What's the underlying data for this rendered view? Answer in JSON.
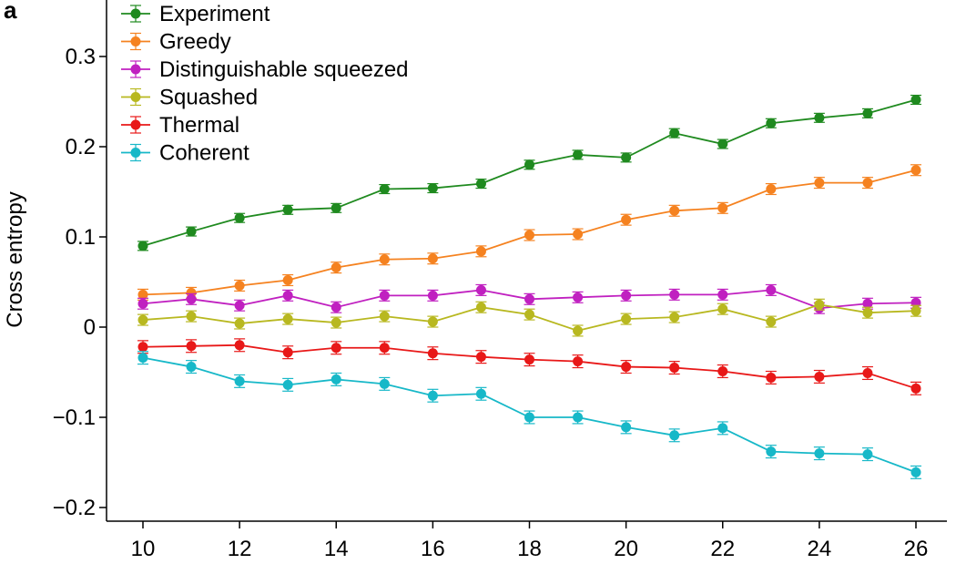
{
  "panel_label": "a",
  "chart_data": {
    "type": "line",
    "title": "",
    "xlabel": "",
    "ylabel": "Cross entropy",
    "xlim": [
      9.3,
      26.8
    ],
    "ylim": [
      -0.21,
      0.36
    ],
    "x_ticks": [
      10,
      12,
      14,
      16,
      18,
      20,
      22,
      24,
      26
    ],
    "x_tick_labels": [
      "10",
      "12",
      "14",
      "16",
      "18",
      "20",
      "22",
      "24",
      "26"
    ],
    "y_ticks": [
      -0.2,
      -0.1,
      0,
      0.1,
      0.2,
      0.3
    ],
    "y_tick_labels": [
      "−0.2",
      "−0.1",
      "0",
      "0.1",
      "0.2",
      "0.3"
    ],
    "grid": false,
    "legend_position": "top-left",
    "x": [
      10,
      11,
      12,
      13,
      14,
      15,
      16,
      17,
      18,
      19,
      20,
      21,
      22,
      23,
      24,
      25,
      26
    ],
    "series": [
      {
        "name": "Experiment",
        "color": "#1f8a1f",
        "values": [
          0.09,
          0.106,
          0.121,
          0.13,
          0.132,
          0.153,
          0.154,
          0.159,
          0.18,
          0.191,
          0.188,
          0.215,
          0.203,
          0.226,
          0.232,
          0.237,
          0.252
        ],
        "error": 0.005
      },
      {
        "name": "Greedy",
        "color": "#f58220",
        "values": [
          0.036,
          0.038,
          0.046,
          0.052,
          0.066,
          0.075,
          0.076,
          0.084,
          0.102,
          0.103,
          0.119,
          0.129,
          0.132,
          0.153,
          0.16,
          0.16,
          0.174
        ],
        "error": 0.006
      },
      {
        "name": "Distinguishable squeezed",
        "color": "#c020c0",
        "values": [
          0.026,
          0.031,
          0.024,
          0.035,
          0.022,
          0.035,
          0.035,
          0.041,
          0.031,
          0.033,
          0.035,
          0.036,
          0.036,
          0.041,
          0.021,
          0.026,
          0.027
        ],
        "error": 0.006
      },
      {
        "name": "Squashed",
        "color": "#b8b820",
        "values": [
          0.008,
          0.012,
          0.004,
          0.009,
          0.005,
          0.012,
          0.006,
          0.022,
          0.014,
          -0.004,
          0.009,
          0.011,
          0.02,
          0.006,
          0.025,
          0.016,
          0.018
        ],
        "error": 0.006
      },
      {
        "name": "Thermal",
        "color": "#e81818",
        "values": [
          -0.022,
          -0.021,
          -0.02,
          -0.028,
          -0.023,
          -0.023,
          -0.029,
          -0.033,
          -0.036,
          -0.038,
          -0.044,
          -0.045,
          -0.049,
          -0.056,
          -0.055,
          -0.051,
          -0.068
        ],
        "error": 0.007
      },
      {
        "name": "Coherent",
        "color": "#17b8c8",
        "values": [
          -0.034,
          -0.044,
          -0.06,
          -0.064,
          -0.058,
          -0.063,
          -0.076,
          -0.074,
          -0.1,
          -0.1,
          -0.111,
          -0.12,
          -0.112,
          -0.138,
          -0.14,
          -0.141,
          -0.161
        ],
        "error": 0.007
      }
    ]
  }
}
